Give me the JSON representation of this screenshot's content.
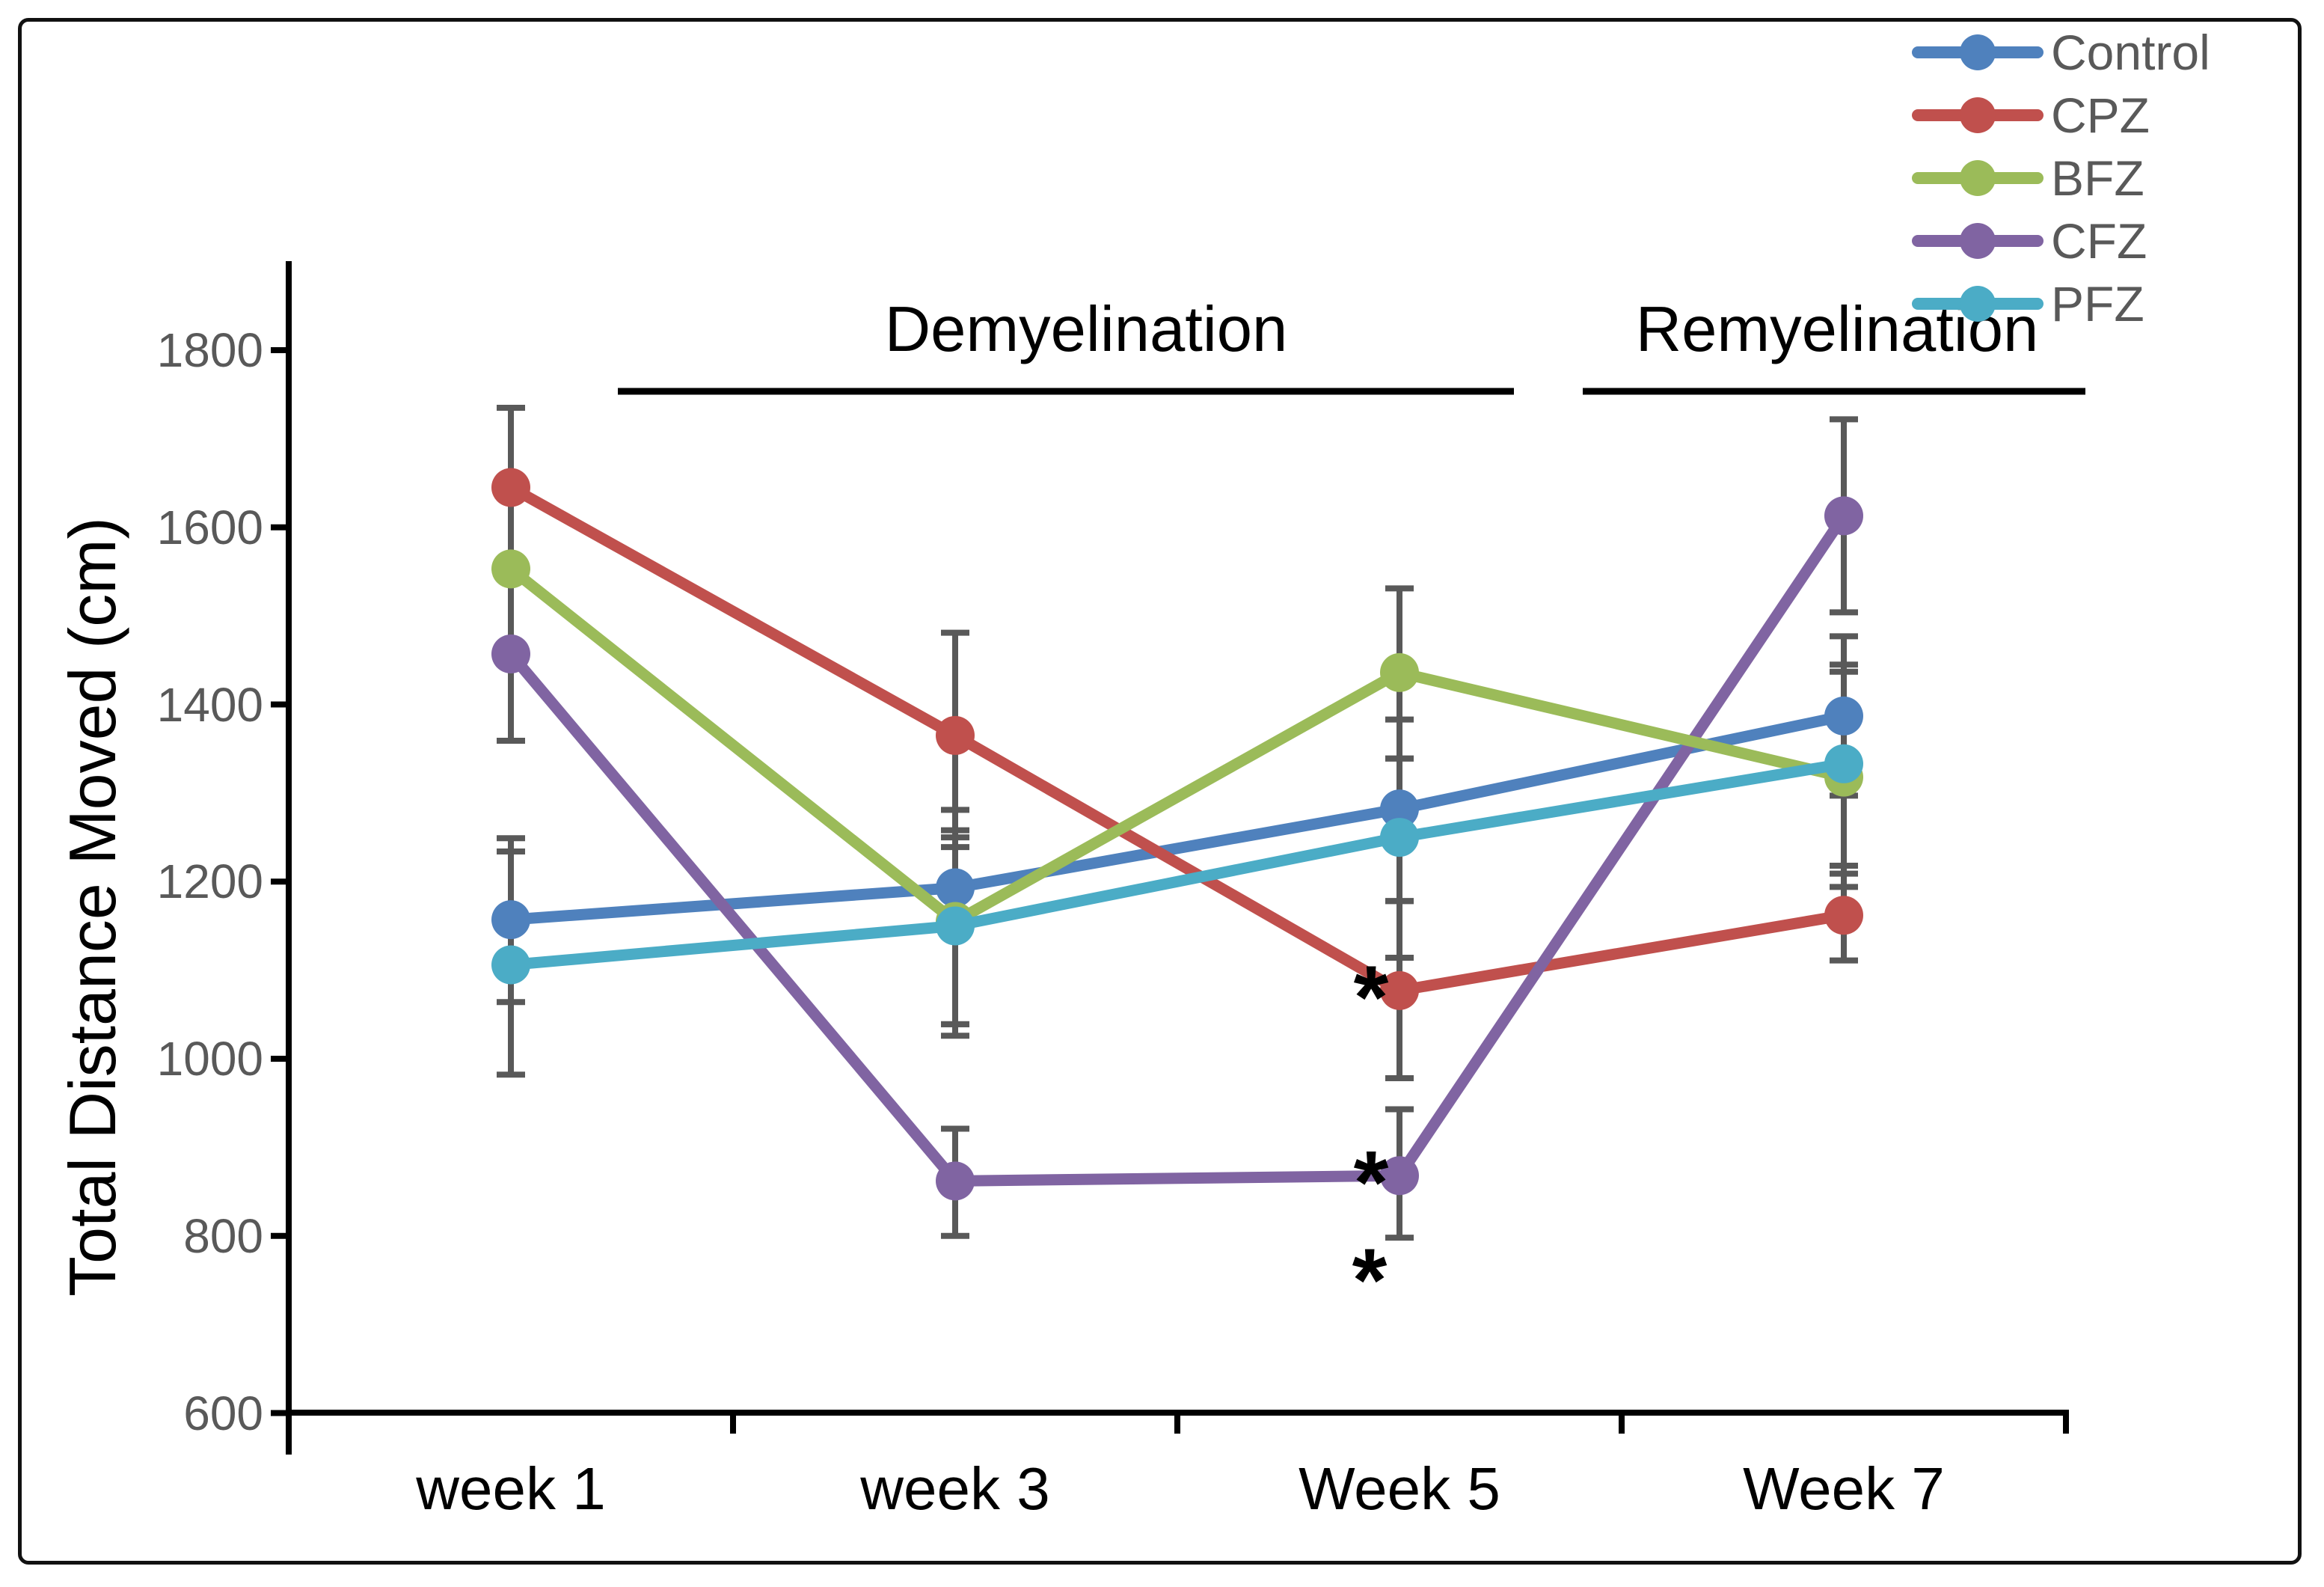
{
  "chart_data": {
    "type": "line",
    "title": "",
    "xlabel": "",
    "ylabel": "Total Distance Moved (cm)",
    "categories": [
      "week 1",
      "week 3",
      "Week 5",
      "Week 7"
    ],
    "yticks": [
      600,
      800,
      1000,
      1200,
      1400,
      1600,
      1800
    ],
    "ylim": [
      600,
      1900
    ],
    "grid": false,
    "legend_position": "top-right",
    "series": [
      {
        "name": "Control",
        "color": "#4F81BD",
        "values": [
          1157,
          1193,
          1282,
          1387
        ],
        "err_plus": [
          92,
          88,
          101,
          90
        ],
        "err_minus": [
          93,
          154,
          104,
          90
        ]
      },
      {
        "name": "CPZ",
        "color": "#C0504D",
        "values": [
          1645,
          1365,
          1077,
          1162
        ],
        "err_plus": [
          90,
          116,
          101,
          47
        ],
        "err_minus": [
          90,
          115,
          99,
          51
        ]
      },
      {
        "name": "BFZ",
        "color": "#9BBB59",
        "values": [
          1553,
          1155,
          1436,
          1318
        ],
        "err_plus": [
          90,
          103,
          95,
          119
        ],
        "err_minus": [
          92,
          116,
          97,
          124
        ]
      },
      {
        "name": "CFZ",
        "color": "#8064A2",
        "values": [
          1457,
          862,
          868,
          1613
        ],
        "err_plus": [
          100,
          59,
          75,
          109
        ],
        "err_minus": [
          98,
          62,
          70,
          109
        ]
      },
      {
        "name": "PFZ",
        "color": "#4BACC6",
        "values": [
          1106,
          1150,
          1250,
          1333
        ],
        "err_plus": [
          128,
          89,
          89,
          112
        ],
        "err_minus": [
          124,
          124,
          136,
          115
        ]
      }
    ],
    "phases": [
      {
        "label": "Demyelination"
      },
      {
        "label": "Remyelination"
      }
    ],
    "significance": [
      {
        "symbol": "*",
        "series": "CPZ",
        "category": "Week 5",
        "placement": "left-of-point"
      },
      {
        "symbol": "*",
        "series": "CFZ",
        "category": "Week 5",
        "placement": "left-of-point"
      },
      {
        "symbol": "*",
        "series": "CFZ",
        "category": "Week 5",
        "placement": "below-error-bar"
      }
    ],
    "error_bar_color": "#595959",
    "axis_color": "#000000",
    "tick_label_color": "#595959",
    "legend_text_color": "#595959"
  }
}
